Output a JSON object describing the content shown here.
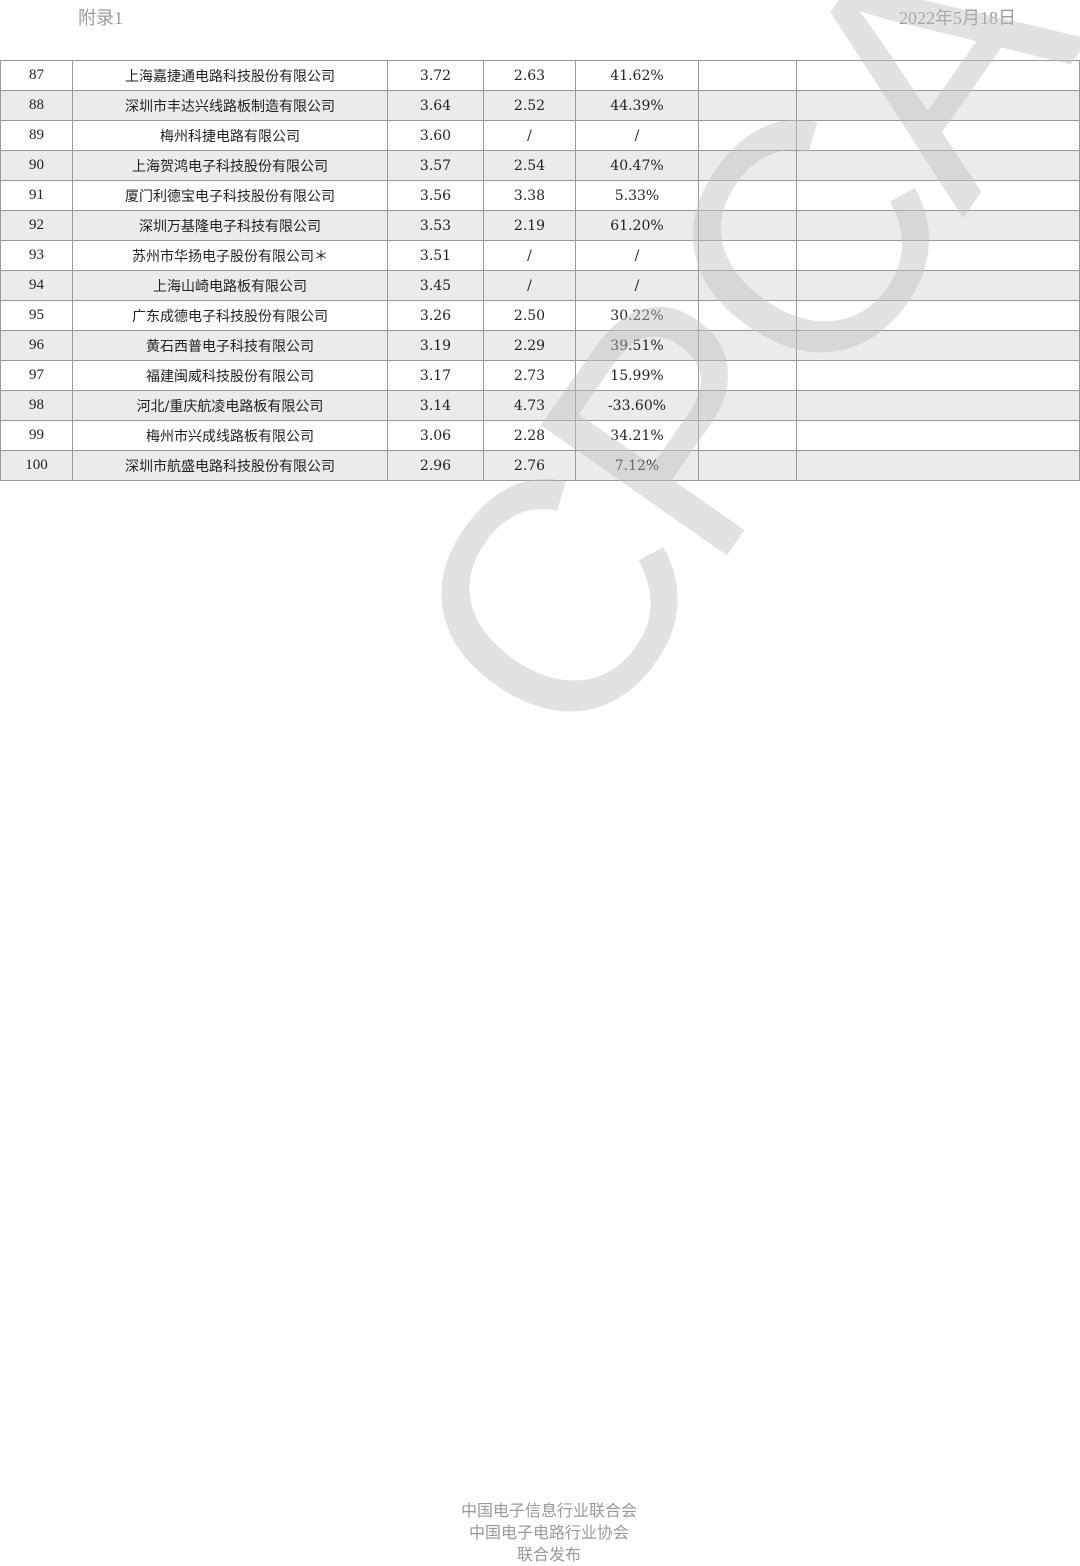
{
  "header": {
    "left": "附录1",
    "right": "2022年5月18日"
  },
  "watermark": "CPCA",
  "rows": [
    [
      "87",
      "上海嘉捷通电路科技股份有限公司",
      "3.72",
      "2.63",
      "41.62%",
      "",
      ""
    ],
    [
      "88",
      "深圳市丰达兴线路板制造有限公司",
      "3.64",
      "2.52",
      "44.39%",
      "",
      ""
    ],
    [
      "89",
      "梅州科捷电路有限公司",
      "3.60",
      "/",
      "/",
      "",
      ""
    ],
    [
      "90",
      "上海贺鸿电子科技股份有限公司",
      "3.57",
      "2.54",
      "40.47%",
      "",
      ""
    ],
    [
      "91",
      "厦门利德宝电子科技股份有限公司",
      "3.56",
      "3.38",
      "5.33%",
      "",
      ""
    ],
    [
      "92",
      "深圳万基隆电子科技有限公司",
      "3.53",
      "2.19",
      "61.20%",
      "",
      ""
    ],
    [
      "93",
      "苏州市华扬电子股份有限公司＊",
      "3.51",
      "/",
      "/",
      "",
      ""
    ],
    [
      "94",
      "上海山崎电路板有限公司",
      "3.45",
      "/",
      "/",
      "",
      ""
    ],
    [
      "95",
      "广东成德电子科技股份有限公司",
      "3.26",
      "2.50",
      "30.22%",
      "",
      ""
    ],
    [
      "96",
      "黄石西普电子科技有限公司",
      "3.19",
      "2.29",
      "39.51%",
      "",
      ""
    ],
    [
      "97",
      "福建闽威科技股份有限公司",
      "3.17",
      "2.73",
      "15.99%",
      "",
      ""
    ],
    [
      "98",
      "河北/重庆航凌电路板有限公司",
      "3.14",
      "4.73",
      "-33.60%",
      "",
      ""
    ],
    [
      "99",
      "梅州市兴成线路板有限公司",
      "3.06",
      "2.28",
      "34.21%",
      "",
      ""
    ],
    [
      "100",
      "深圳市航盛电路科技股份有限公司",
      "2.96",
      "2.76",
      "7.12%",
      "",
      ""
    ]
  ],
  "footer": [
    "中国电子信息行业联合会",
    "中国电子电路行业协会",
    "联合发布"
  ]
}
